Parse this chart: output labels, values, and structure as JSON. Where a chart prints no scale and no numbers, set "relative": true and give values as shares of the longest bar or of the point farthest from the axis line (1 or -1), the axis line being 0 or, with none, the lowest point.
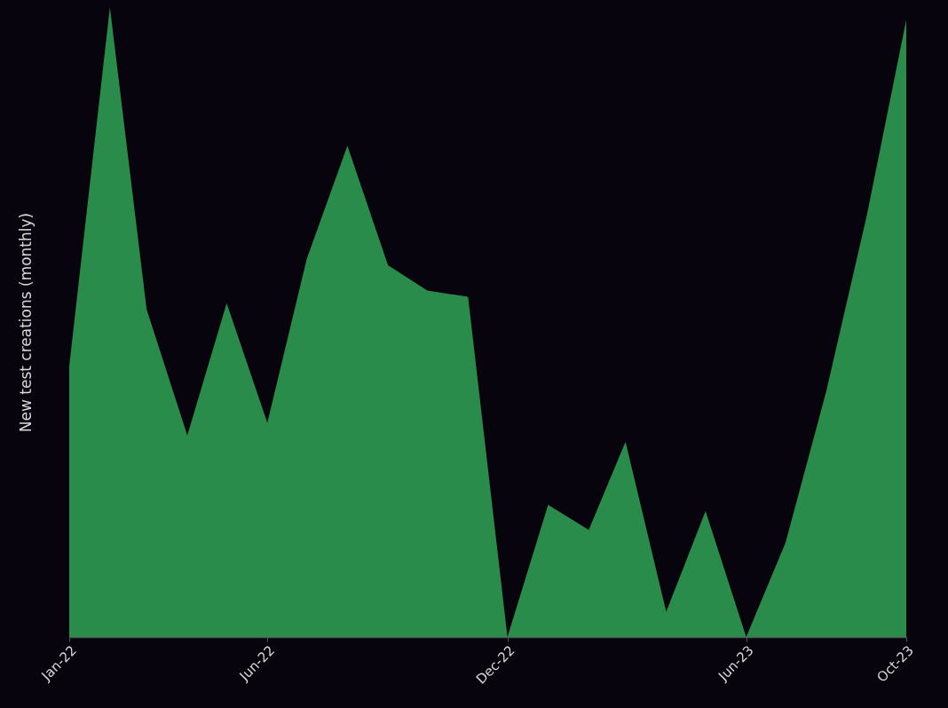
{
  "chart_data": {
    "type": "area",
    "relative": true,
    "ylabel": "New test creations (monthly)",
    "x": [
      "2022-01",
      "2022-02",
      "2022-03",
      "2022-04",
      "2022-05",
      "2022-06",
      "2022-07",
      "2022-08",
      "2022-09",
      "2022-10",
      "2022-11",
      "2022-12",
      "2023-01",
      "2023-02",
      "2023-03",
      "2023-04",
      "2023-05",
      "2023-06",
      "2023-07",
      "2023-08",
      "2023-09",
      "2023-10"
    ],
    "xlim": [
      "2022-01",
      "2023-10"
    ],
    "xticks": [
      {
        "value": "2022-01",
        "label": "Jan-22"
      },
      {
        "value": "2022-06",
        "label": "Jun-22"
      },
      {
        "value": "2022-12",
        "label": "Dec-22"
      },
      {
        "value": "2023-06",
        "label": "Jun-23"
      },
      {
        "value": "2023-10",
        "label": "Oct-23"
      }
    ],
    "series": [
      {
        "color": "#2a8c4a",
        "values": [
          0.43,
          1,
          0.52,
          0.32,
          0.53,
          0.34,
          0.6,
          0.78,
          0.59,
          0.55,
          0.54,
          0,
          0.21,
          0.17,
          0.31,
          0.04,
          0.2,
          0,
          0.15,
          0.39,
          0.67,
          0.98
        ]
      }
    ],
    "grid": false
  }
}
